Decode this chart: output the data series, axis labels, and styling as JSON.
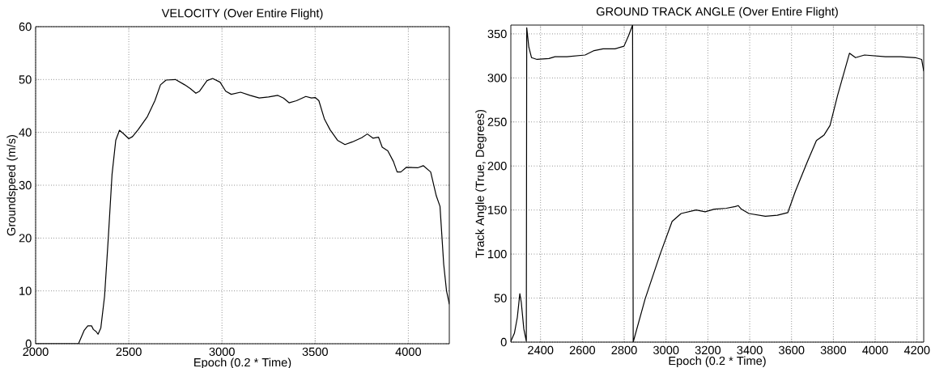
{
  "chart_data": [
    {
      "type": "line",
      "title": "VELOCITY (Over Entire Flight)",
      "xlabel": "Epoch (0.2 * Time)",
      "ylabel": "Groundspeed (m/s)",
      "xlim": [
        2000,
        4220
      ],
      "ylim": [
        0,
        60
      ],
      "xticks": [
        2000,
        2500,
        3000,
        3500,
        4000
      ],
      "yticks": [
        0,
        10,
        20,
        30,
        40,
        50,
        60
      ],
      "grid": true,
      "line_style": "solid",
      "x": [
        2000,
        2230,
        2260,
        2280,
        2300,
        2310,
        2325,
        2335,
        2350,
        2370,
        2390,
        2410,
        2430,
        2450,
        2470,
        2500,
        2520,
        2550,
        2600,
        2640,
        2670,
        2700,
        2750,
        2800,
        2830,
        2860,
        2880,
        2920,
        2950,
        2990,
        3020,
        3050,
        3100,
        3150,
        3200,
        3250,
        3300,
        3330,
        3360,
        3400,
        3450,
        3480,
        3500,
        3520,
        3550,
        3580,
        3620,
        3660,
        3700,
        3750,
        3780,
        3810,
        3840,
        3860,
        3890,
        3920,
        3940,
        3960,
        3990,
        4050,
        4080,
        4120,
        4150,
        4170,
        4190,
        4205,
        4220
      ],
      "series": [
        {
          "color": "#000000",
          "values": [
            0,
            0,
            2.5,
            3.4,
            3.4,
            2.7,
            2.3,
            1.8,
            3,
            9,
            20,
            32,
            38.5,
            40.4,
            39.8,
            38.8,
            39.2,
            40.5,
            43,
            46,
            49,
            49.9,
            50,
            49,
            48.3,
            47.4,
            47.8,
            49.8,
            50.2,
            49.5,
            47.8,
            47.2,
            47.6,
            47,
            46.5,
            46.7,
            47,
            46.5,
            45.6,
            46,
            46.8,
            46.5,
            46.6,
            46,
            42.5,
            40.5,
            38.5,
            37.7,
            38.2,
            39,
            39.7,
            38.9,
            39.1,
            37.2,
            36.5,
            34.5,
            32.5,
            32.5,
            33.4,
            33.3,
            33.7,
            32.5,
            28,
            26,
            15,
            10,
            7.5
          ]
        }
      ]
    },
    {
      "type": "line",
      "title": "GROUND TRACK ANGLE (Over Entire Flight)",
      "xlabel": "Epoch (0.2 * Time)",
      "ylabel": "Track Angle (True, Degrees)",
      "xlim": [
        2258,
        4232
      ],
      "ylim": [
        0,
        360
      ],
      "xticks": [
        2400,
        2600,
        2800,
        3000,
        3200,
        3400,
        3600,
        3800,
        4000,
        4200
      ],
      "yticks": [
        0,
        50,
        100,
        150,
        200,
        250,
        300,
        350
      ],
      "grid": true,
      "line_style": "solid",
      "x": [
        2258,
        2275,
        2289,
        2301,
        2308,
        2320,
        2332,
        2334,
        2344,
        2357,
        2383,
        2440,
        2469,
        2526,
        2613,
        2656,
        2699,
        2756,
        2799,
        2821,
        2840,
        2843,
        2900,
        2972,
        3029,
        3072,
        3144,
        3187,
        3230,
        3288,
        3331,
        3345,
        3360,
        3396,
        3475,
        3532,
        3582,
        3618,
        3676,
        3719,
        3755,
        3784,
        3820,
        3877,
        3906,
        3949,
        4049,
        4121,
        4193,
        4222,
        4232
      ],
      "series": [
        {
          "color": "#000000",
          "values": [
            1,
            10,
            28,
            55,
            45,
            15,
            1,
            357,
            335,
            323,
            321,
            322,
            324,
            324,
            326,
            331,
            333,
            333,
            336,
            348,
            360,
            0,
            49,
            100,
            137,
            146,
            150,
            148,
            151,
            152,
            154,
            155,
            151,
            146,
            143,
            144,
            147,
            171,
            205,
            229,
            235,
            246,
            280,
            328,
            323,
            326,
            324,
            324,
            323,
            321,
            308
          ]
        }
      ]
    }
  ]
}
